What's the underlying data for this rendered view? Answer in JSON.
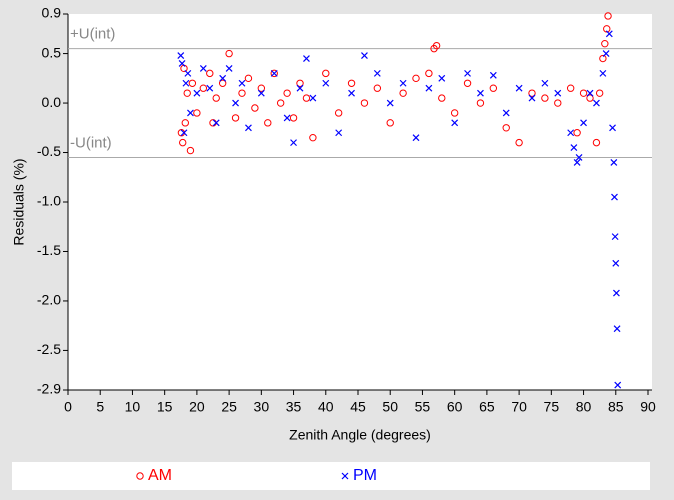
{
  "chart_data": {
    "type": "scatter",
    "x_label": "Zenith Angle (degrees)",
    "y_label": "Residuals (%)",
    "xlim": [
      0,
      90
    ],
    "xticks": [
      0,
      5,
      10,
      15,
      20,
      25,
      30,
      35,
      40,
      45,
      50,
      55,
      60,
      65,
      70,
      75,
      80,
      85,
      90
    ],
    "ylim": [
      -2.9,
      0.9
    ],
    "yticks": [
      0.9,
      0.5,
      {
        "value": 0,
        "label": "0.0"
      },
      -0.5,
      {
        "value": -1,
        "label": "-1.0"
      },
      -1.5,
      {
        "value": -2,
        "label": "-2.0"
      },
      -2.5,
      -2.9
    ],
    "reference_lines": [
      {
        "label": "+U(int)",
        "value": 0.55
      },
      {
        "label": "-U(int)",
        "value": -0.55
      }
    ],
    "series": [
      {
        "name": "AM",
        "color": "#ff0000",
        "marker": "o",
        "x": [
          17.6,
          17.8,
          18,
          18.2,
          18.5,
          19,
          19.3,
          20,
          21,
          22,
          22.5,
          23,
          24,
          25,
          26,
          27,
          28,
          29,
          30,
          31,
          32,
          33,
          34,
          35,
          36,
          37,
          38,
          40,
          42,
          44,
          46,
          48,
          50,
          52,
          54,
          56,
          56.8,
          57.2,
          58,
          60,
          62,
          64,
          66,
          68,
          70,
          72,
          74,
          76,
          78,
          79,
          80,
          81,
          82,
          82.5,
          83,
          83.3,
          83.6,
          83.8
        ],
        "values": [
          -0.3,
          -0.4,
          0.35,
          -0.2,
          0.1,
          -0.48,
          0.2,
          -0.1,
          0.15,
          0.3,
          -0.2,
          0.05,
          0.2,
          0.5,
          -0.15,
          0.1,
          0.25,
          -0.05,
          0.15,
          -0.2,
          0.3,
          0.0,
          0.1,
          -0.15,
          0.2,
          0.05,
          -0.35,
          0.3,
          -0.1,
          0.2,
          0.0,
          0.15,
          -0.2,
          0.1,
          0.25,
          0.3,
          0.55,
          0.58,
          0.05,
          -0.1,
          0.2,
          0.0,
          0.15,
          -0.25,
          -0.4,
          0.1,
          0.05,
          0.0,
          0.15,
          -0.3,
          0.1,
          0.05,
          -0.4,
          0.1,
          0.45,
          0.6,
          0.75,
          0.88
        ]
      },
      {
        "name": "PM",
        "color": "#0000ff",
        "marker": "x",
        "x": [
          17.5,
          17.7,
          18,
          18.3,
          18.6,
          19,
          20,
          21,
          22,
          23,
          24,
          25,
          26,
          27,
          28,
          30,
          32,
          34,
          35,
          36,
          37,
          38,
          40,
          42,
          44,
          46,
          48,
          50,
          52,
          54,
          56,
          58,
          60,
          62,
          64,
          66,
          68,
          70,
          72,
          74,
          76,
          78,
          78.5,
          79,
          79.3,
          80,
          81,
          82,
          83,
          83.5,
          84,
          84.5,
          84.7,
          84.8,
          84.9,
          85,
          85.1,
          85.2,
          85.3
        ],
        "values": [
          0.48,
          0.4,
          -0.3,
          0.2,
          0.3,
          -0.1,
          0.1,
          0.35,
          0.15,
          -0.2,
          0.25,
          0.35,
          0.0,
          0.2,
          -0.25,
          0.1,
          0.3,
          -0.15,
          -0.4,
          0.15,
          0.45,
          0.05,
          0.2,
          -0.3,
          0.1,
          0.48,
          0.3,
          0.0,
          0.2,
          -0.35,
          0.15,
          0.25,
          -0.2,
          0.3,
          0.1,
          0.28,
          -0.1,
          0.15,
          0.05,
          0.2,
          0.1,
          -0.3,
          -0.45,
          -0.6,
          -0.55,
          -0.2,
          0.1,
          0.0,
          0.3,
          0.5,
          0.7,
          -0.25,
          -0.6,
          -0.95,
          -1.35,
          -1.62,
          -1.92,
          -2.28,
          -2.85
        ]
      }
    ]
  }
}
